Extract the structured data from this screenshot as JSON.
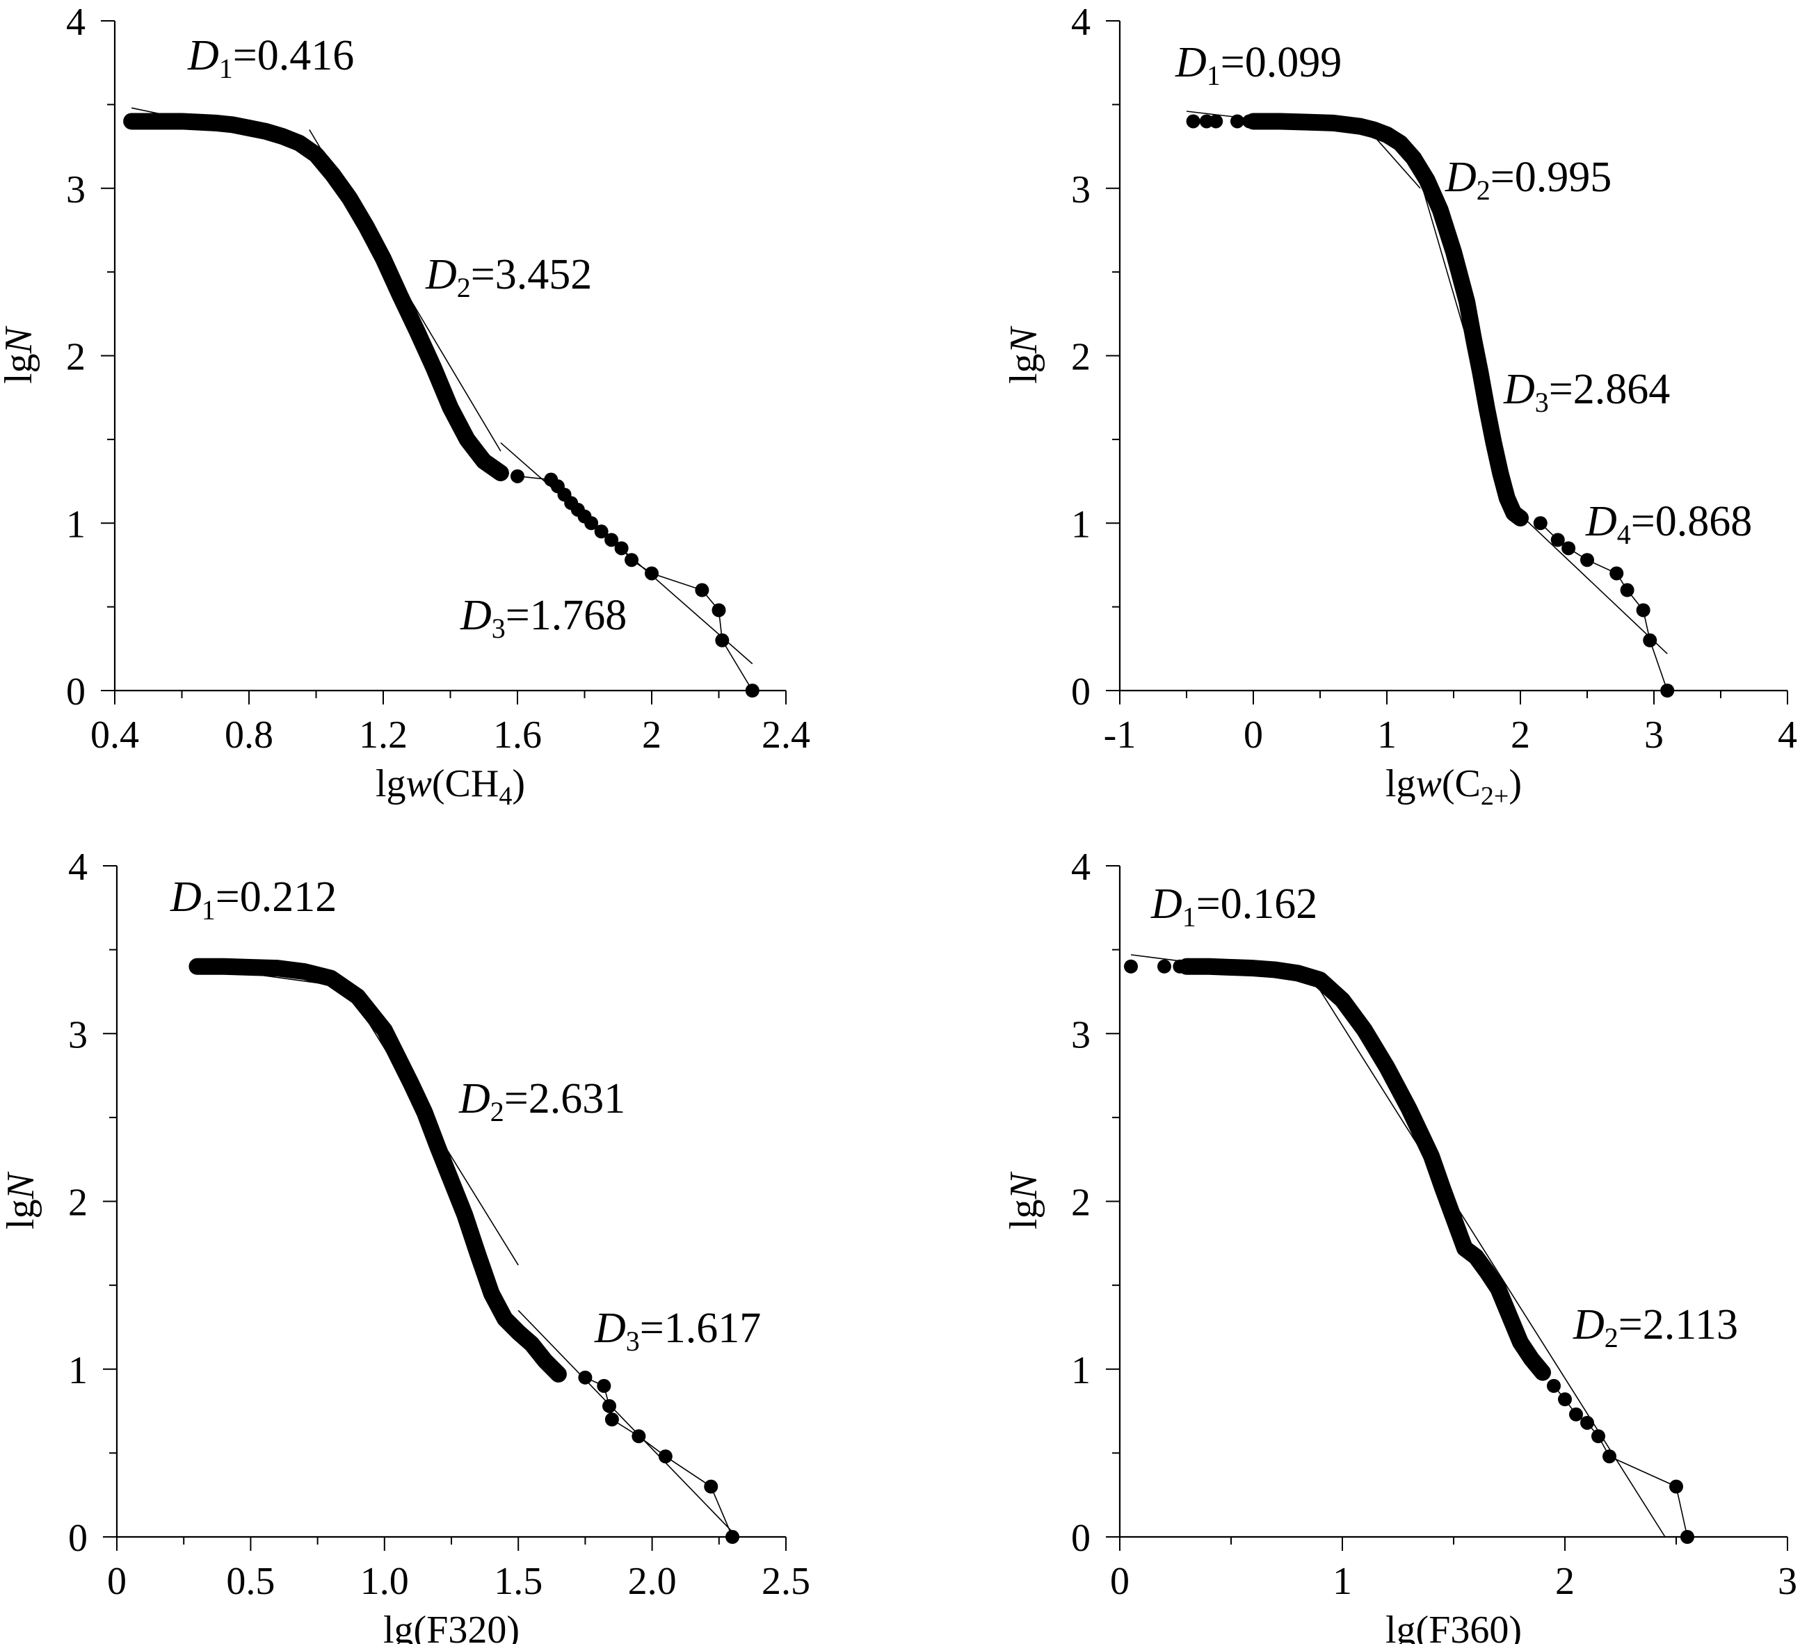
{
  "figure": {
    "panels": [
      {
        "xlabel": {
          "main": "lg",
          "italic": "w",
          "rest": "(CH",
          "sub": "4",
          "tail": ")"
        },
        "ylabel": {
          "main": "lg",
          "italic": "N"
        },
        "annotations": [
          {
            "sym": "D",
            "sub": "1",
            "text": "=0.416"
          },
          {
            "sym": "D",
            "sub": "2",
            "text": "=3.452"
          },
          {
            "sym": "D",
            "sub": "3",
            "text": "=1.768"
          }
        ]
      },
      {
        "xlabel": {
          "main": "lg",
          "italic": "w",
          "rest": "(C",
          "sub": "2+",
          "tail": ")"
        },
        "ylabel": {
          "main": "lg",
          "italic": "N"
        },
        "annotations": [
          {
            "sym": "D",
            "sub": "1",
            "text": "=0.099"
          },
          {
            "sym": "D",
            "sub": "2",
            "text": "=0.995"
          },
          {
            "sym": "D",
            "sub": "3",
            "text": "=2.864"
          },
          {
            "sym": "D",
            "sub": "4",
            "text": "=0.868"
          }
        ]
      },
      {
        "xlabel": {
          "main": "lg(F320)",
          "italic": "",
          "rest": "",
          "sub": "",
          "tail": ""
        },
        "ylabel": {
          "main": "lg",
          "italic": "N"
        },
        "annotations": [
          {
            "sym": "D",
            "sub": "1",
            "text": "=0.212"
          },
          {
            "sym": "D",
            "sub": "2",
            "text": "=2.631"
          },
          {
            "sym": "D",
            "sub": "3",
            "text": "=1.617"
          }
        ]
      },
      {
        "xlabel": {
          "main": "lg(F360)",
          "italic": "",
          "rest": "",
          "sub": "",
          "tail": ""
        },
        "ylabel": {
          "main": "lg",
          "italic": "N"
        },
        "annotations": [
          {
            "sym": "D",
            "sub": "1",
            "text": "=0.162"
          },
          {
            "sym": "D",
            "sub": "2",
            "text": "=2.113"
          }
        ]
      }
    ]
  },
  "chart_data": [
    {
      "type": "scatter",
      "xlabel": "lgw(CH4)",
      "ylabel": "lgN",
      "xlim": [
        0.4,
        2.4
      ],
      "ylim": [
        0,
        4
      ],
      "xticks": [
        "0.4",
        "0.8",
        "1.2",
        "1.6",
        "2",
        "2.4"
      ],
      "yticks": [
        "0",
        "1",
        "2",
        "3",
        "4"
      ],
      "fit_lines": [
        {
          "label": "D1=0.416",
          "slope": -0.416,
          "x": [
            0.45,
            1.0
          ],
          "y": [
            3.48,
            3.25
          ]
        },
        {
          "label": "D2=3.452",
          "slope": -3.452,
          "x": [
            0.98,
            1.55
          ],
          "y": [
            3.35,
            1.43
          ]
        },
        {
          "label": "D3=1.768",
          "slope": -1.768,
          "x": [
            1.55,
            2.3
          ],
          "y": [
            1.48,
            0.16
          ]
        }
      ],
      "curve": [
        [
          0.45,
          3.4
        ],
        [
          0.5,
          3.4
        ],
        [
          0.55,
          3.4
        ],
        [
          0.6,
          3.4
        ],
        [
          0.65,
          3.395
        ],
        [
          0.7,
          3.39
        ],
        [
          0.75,
          3.38
        ],
        [
          0.8,
          3.36
        ],
        [
          0.85,
          3.34
        ],
        [
          0.9,
          3.31
        ],
        [
          0.95,
          3.27
        ],
        [
          1.0,
          3.2
        ],
        [
          1.05,
          3.08
        ],
        [
          1.1,
          2.94
        ],
        [
          1.15,
          2.77
        ],
        [
          1.2,
          2.58
        ],
        [
          1.25,
          2.36
        ],
        [
          1.3,
          2.15
        ],
        [
          1.35,
          1.93
        ],
        [
          1.4,
          1.69
        ],
        [
          1.45,
          1.5
        ],
        [
          1.5,
          1.37
        ],
        [
          1.55,
          1.3
        ]
      ],
      "points": [
        [
          0.45,
          3.4
        ],
        [
          0.48,
          3.4
        ],
        [
          0.5,
          3.4
        ],
        [
          0.52,
          3.4
        ],
        [
          0.55,
          3.4
        ],
        [
          0.57,
          3.4
        ],
        [
          0.59,
          3.4
        ],
        [
          1.6,
          1.28
        ],
        [
          1.7,
          1.26
        ],
        [
          1.72,
          1.22
        ],
        [
          1.74,
          1.17
        ],
        [
          1.76,
          1.12
        ],
        [
          1.78,
          1.08
        ],
        [
          1.8,
          1.04
        ],
        [
          1.82,
          1.0
        ],
        [
          1.85,
          0.95
        ],
        [
          1.88,
          0.9
        ],
        [
          1.91,
          0.85
        ],
        [
          1.94,
          0.78
        ],
        [
          2.0,
          0.7
        ],
        [
          2.15,
          0.6
        ],
        [
          2.2,
          0.48
        ],
        [
          2.21,
          0.3
        ],
        [
          2.3,
          0.0
        ]
      ]
    },
    {
      "type": "scatter",
      "xlabel": "lgw(C2+)",
      "ylabel": "lgN",
      "xlim": [
        -1,
        4
      ],
      "ylim": [
        0,
        4
      ],
      "xticks": [
        "-1",
        "0",
        "1",
        "2",
        "3",
        "4"
      ],
      "yticks": [
        "0",
        "1",
        "2",
        "3",
        "4"
      ],
      "fit_lines": [
        {
          "label": "D1=0.099",
          "slope": -0.099,
          "x": [
            -0.5,
            0.9
          ],
          "y": [
            3.46,
            3.33
          ]
        },
        {
          "label": "D2=0.995",
          "slope": -0.995,
          "x": [
            0.85,
            1.25
          ],
          "y": [
            3.36,
            3.0
          ]
        },
        {
          "label": "D3=2.864",
          "slope": -2.864,
          "x": [
            1.25,
            2.0
          ],
          "y": [
            3.05,
            1.0
          ]
        },
        {
          "label": "D4=0.868",
          "slope": -0.868,
          "x": [
            2.0,
            3.1
          ],
          "y": [
            1.05,
            0.22
          ]
        }
      ],
      "curve": [
        [
          0.0,
          3.4
        ],
        [
          0.2,
          3.4
        ],
        [
          0.4,
          3.395
        ],
        [
          0.6,
          3.39
        ],
        [
          0.8,
          3.37
        ],
        [
          0.9,
          3.35
        ],
        [
          1.0,
          3.32
        ],
        [
          1.1,
          3.27
        ],
        [
          1.2,
          3.18
        ],
        [
          1.3,
          3.05
        ],
        [
          1.4,
          2.87
        ],
        [
          1.5,
          2.62
        ],
        [
          1.6,
          2.32
        ],
        [
          1.65,
          2.1
        ],
        [
          1.7,
          1.9
        ],
        [
          1.75,
          1.68
        ],
        [
          1.8,
          1.48
        ],
        [
          1.85,
          1.3
        ],
        [
          1.9,
          1.15
        ],
        [
          1.95,
          1.06
        ],
        [
          2.0,
          1.03
        ]
      ],
      "points": [
        [
          -0.45,
          3.4
        ],
        [
          -0.35,
          3.4
        ],
        [
          -0.28,
          3.4
        ],
        [
          -0.12,
          3.4
        ],
        [
          -0.03,
          3.4
        ],
        [
          0.0,
          3.4
        ],
        [
          2.15,
          1.0
        ],
        [
          2.28,
          0.9
        ],
        [
          2.36,
          0.85
        ],
        [
          2.5,
          0.78
        ],
        [
          2.72,
          0.7
        ],
        [
          2.8,
          0.6
        ],
        [
          2.92,
          0.48
        ],
        [
          2.97,
          0.3
        ],
        [
          3.1,
          0.0
        ]
      ]
    },
    {
      "type": "scatter",
      "xlabel": "lg(F320)",
      "ylabel": "lgN",
      "xlim": [
        0,
        2.5
      ],
      "ylim": [
        0,
        4
      ],
      "xticks": [
        "0",
        "0.5",
        "1.0",
        "1.5",
        "2.0",
        "2.5"
      ],
      "yticks": [
        "0",
        "1",
        "2",
        "3",
        "4"
      ],
      "fit_lines": [
        {
          "label": "D1=0.212",
          "slope": -0.212,
          "x": [
            0.3,
            0.85
          ],
          "y": [
            3.4,
            3.28
          ]
        },
        {
          "label": "D2=2.631",
          "slope": -2.631,
          "x": [
            0.85,
            1.5
          ],
          "y": [
            3.3,
            1.62
          ]
        },
        {
          "label": "D3=1.617",
          "slope": -1.617,
          "x": [
            1.5,
            2.3
          ],
          "y": [
            1.35,
            0.03
          ]
        }
      ],
      "curve": [
        [
          0.3,
          3.4
        ],
        [
          0.4,
          3.4
        ],
        [
          0.5,
          3.395
        ],
        [
          0.6,
          3.39
        ],
        [
          0.7,
          3.37
        ],
        [
          0.8,
          3.33
        ],
        [
          0.9,
          3.22
        ],
        [
          1.0,
          3.02
        ],
        [
          1.05,
          2.86
        ],
        [
          1.1,
          2.7
        ],
        [
          1.15,
          2.53
        ],
        [
          1.2,
          2.32
        ],
        [
          1.25,
          2.12
        ],
        [
          1.3,
          1.92
        ],
        [
          1.35,
          1.68
        ],
        [
          1.4,
          1.45
        ],
        [
          1.45,
          1.3
        ],
        [
          1.5,
          1.22
        ],
        [
          1.55,
          1.15
        ],
        [
          1.6,
          1.05
        ],
        [
          1.65,
          0.97
        ]
      ],
      "points": [
        [
          0.3,
          3.4
        ],
        [
          0.33,
          3.4
        ],
        [
          0.36,
          3.4
        ],
        [
          1.75,
          0.95
        ],
        [
          1.82,
          0.9
        ],
        [
          1.84,
          0.78
        ],
        [
          1.85,
          0.7
        ],
        [
          1.95,
          0.6
        ],
        [
          2.05,
          0.48
        ],
        [
          2.22,
          0.3
        ],
        [
          2.3,
          0.0
        ]
      ]
    },
    {
      "type": "scatter",
      "xlabel": "lg(F360)",
      "ylabel": "lgN",
      "xlim": [
        0,
        3
      ],
      "ylim": [
        0,
        4
      ],
      "xticks": [
        "0",
        "1",
        "2",
        "3"
      ],
      "yticks": [
        "0",
        "1",
        "2",
        "3",
        "4"
      ],
      "fit_lines": [
        {
          "label": "D1=0.162",
          "slope": -0.162,
          "x": [
            0.05,
            0.88
          ],
          "y": [
            3.47,
            3.33
          ]
        },
        {
          "label": "D2=2.113",
          "slope": -2.113,
          "x": [
            0.88,
            2.45
          ],
          "y": [
            3.3,
            0.0
          ]
        }
      ],
      "curve": [
        [
          0.3,
          3.4
        ],
        [
          0.4,
          3.4
        ],
        [
          0.5,
          3.395
        ],
        [
          0.6,
          3.39
        ],
        [
          0.7,
          3.38
        ],
        [
          0.8,
          3.36
        ],
        [
          0.9,
          3.32
        ],
        [
          1.0,
          3.2
        ],
        [
          1.1,
          3.02
        ],
        [
          1.2,
          2.8
        ],
        [
          1.3,
          2.55
        ],
        [
          1.4,
          2.27
        ],
        [
          1.45,
          2.08
        ],
        [
          1.5,
          1.9
        ],
        [
          1.55,
          1.72
        ],
        [
          1.6,
          1.67
        ],
        [
          1.65,
          1.58
        ],
        [
          1.7,
          1.48
        ],
        [
          1.75,
          1.32
        ],
        [
          1.8,
          1.16
        ],
        [
          1.85,
          1.06
        ],
        [
          1.9,
          0.98
        ]
      ],
      "points": [
        [
          0.05,
          3.4
        ],
        [
          0.2,
          3.4
        ],
        [
          0.27,
          3.4
        ],
        [
          0.31,
          3.4
        ],
        [
          1.95,
          0.9
        ],
        [
          2.0,
          0.82
        ],
        [
          2.05,
          0.73
        ],
        [
          2.1,
          0.68
        ],
        [
          2.15,
          0.6
        ],
        [
          2.2,
          0.48
        ],
        [
          2.5,
          0.3
        ],
        [
          2.55,
          0.0
        ]
      ]
    }
  ]
}
